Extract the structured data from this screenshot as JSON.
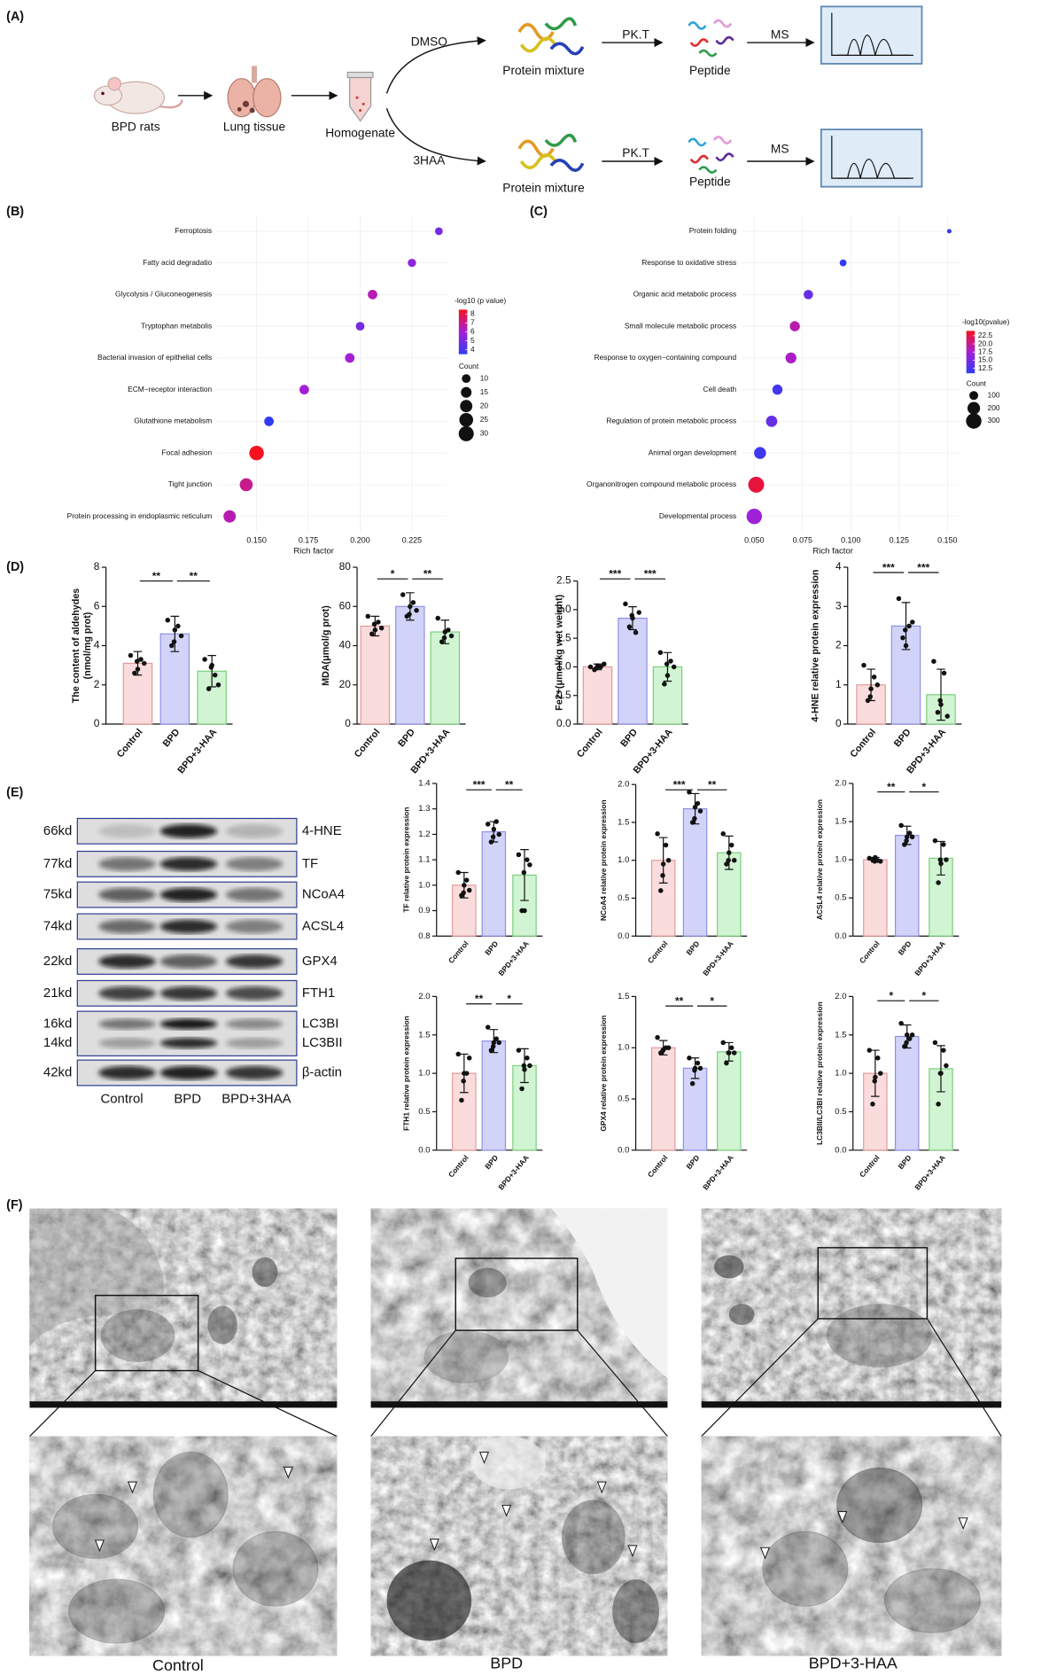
{
  "panel_labels": [
    "(A)",
    "(B)",
    "(C)",
    "(D)",
    "(E)",
    "(F)"
  ],
  "schematic": {
    "steps": [
      "BPD rats",
      "Lung tissue",
      "Homogenate"
    ],
    "branches": [
      {
        "treatment": "DMSO",
        "protein": "Protein mixture",
        "digest": "PK.T",
        "product": "Peptide",
        "analysis": "MS"
      },
      {
        "treatment": "3HAA",
        "protein": "Protein mixture",
        "digest": "PK.T",
        "product": "Peptide",
        "analysis": "MS"
      }
    ]
  },
  "chart_data": [
    {
      "type": "dot",
      "categories": [
        "Ferroptosis",
        "Fatty acid degradatio",
        "Glycolysis / Gluconeogenesis",
        "Tryptophan metabolis",
        "Bacterial invasion of epithelial cells",
        "ECM−receptor interaction",
        "Glutathione metabolism",
        "Focal adhesion",
        "Tight junction",
        "Protein processing in endoplasmic reticulum"
      ],
      "values": [
        0.238,
        0.225,
        0.206,
        0.2,
        0.195,
        0.173,
        0.156,
        0.15,
        0.145,
        0.137
      ],
      "pvalues": [
        5,
        5.5,
        6.5,
        5,
        6,
        6,
        3.5,
        8.5,
        7,
        6.5
      ],
      "counts": [
        8,
        9,
        12,
        10,
        12,
        12,
        12,
        28,
        22,
        20
      ],
      "xlabel": "Rich factor",
      "xlim": [
        0.131,
        0.242
      ],
      "xticks": [
        {
          "value": 0.15,
          "label": "0.150"
        },
        0.175,
        {
          "value": 0.2,
          "label": "0.200"
        },
        0.225
      ],
      "grid": true,
      "color_legend": {
        "title": "-log10 (p value)",
        "lim": [
          3.5,
          8.5
        ],
        "ticks": [
          8,
          7,
          6,
          5,
          4
        ],
        "colors": [
          "#2f3bf5",
          "#a61fd6",
          "#f5121f"
        ]
      },
      "size_legend": {
        "title": "Count",
        "ticks": [
          10,
          15,
          20,
          25,
          30
        ]
      }
    },
    {
      "type": "dot",
      "categories": [
        "Protein folding",
        "Response to oxidative stress",
        "Organic acid metabolic process",
        "Small molecule metabolic process",
        "Response to oxygen−containing compound",
        "Cell death",
        "Regulation of protein metabolic process",
        "Animal organ development",
        "Organonitrogen compound metabolic process",
        "Developmental process"
      ],
      "values": [
        0.151,
        0.096,
        0.078,
        0.071,
        0.069,
        0.062,
        0.059,
        0.053,
        0.051,
        0.05
      ],
      "pvalues": [
        11,
        11,
        14,
        19,
        18,
        12,
        14,
        12,
        23,
        17
      ],
      "counts": [
        25,
        60,
        110,
        130,
        150,
        130,
        160,
        180,
        320,
        300
      ],
      "xlabel": "Rich factor",
      "xlim": [
        0.0435,
        0.156
      ],
      "xticks": [
        {
          "value": 0.05,
          "label": "0.050"
        },
        0.075,
        {
          "value": 0.1,
          "label": "0.100"
        },
        0.125,
        {
          "value": 0.15,
          "label": "0.150"
        }
      ],
      "grid": true,
      "color_legend": {
        "title": "-log10(pvalue)",
        "lim": [
          11,
          24
        ],
        "ticks": [
          22.5,
          {
            "value": 20,
            "label": "20.0"
          },
          17.5,
          {
            "value": 15,
            "label": "15.0"
          },
          12.5
        ],
        "colors": [
          "#2f3bf5",
          "#a61fd6",
          "#f5121f"
        ]
      },
      "size_legend": {
        "title": "Count",
        "ticks": [
          100,
          200,
          300
        ]
      }
    },
    {
      "type": "bar",
      "ylabel": [
        "The content of aldehydes",
        "(nmol/mg prot)"
      ],
      "categories": [
        "Control",
        "BPD",
        "BPD+3-HAA"
      ],
      "values": [
        3.1,
        4.6,
        2.7
      ],
      "errors": [
        0.6,
        0.9,
        0.8
      ],
      "points": [
        [
          3.5,
          3.1,
          2.6,
          3.3,
          2.8,
          3.2
        ],
        [
          5.3,
          4.5,
          4.0,
          5.0,
          4.8,
          4.2
        ],
        [
          3.3,
          2.0,
          1.8,
          2.5,
          3.0,
          2.9
        ]
      ],
      "colors": [
        "#fbdcdc",
        "#d2d3f8",
        "#d1f4d2"
      ],
      "edgecolors": [
        "#e39a9a",
        "#8f90e6",
        "#7ccf7e"
      ],
      "ylim": [
        0,
        8
      ],
      "yticks": [
        0,
        2,
        4,
        6,
        8
      ],
      "significance": [
        "**",
        "**"
      ]
    },
    {
      "type": "bar",
      "ylabel": "MDA(μmol/g prot)",
      "categories": [
        "Control",
        "BPD",
        "BPD+3-HAA"
      ],
      "values": [
        50,
        60,
        47
      ],
      "errors": [
        5,
        7,
        6
      ],
      "points": [
        [
          55,
          49,
          46,
          52,
          48,
          51
        ],
        [
          66,
          58,
          55,
          62,
          60,
          56
        ],
        [
          54,
          45,
          42,
          48,
          47,
          44
        ]
      ],
      "colors": [
        "#fbdcdc",
        "#d2d3f8",
        "#d1f4d2"
      ],
      "edgecolors": [
        "#e39a9a",
        "#8f90e6",
        "#7ccf7e"
      ],
      "ylim": [
        0,
        80
      ],
      "yticks": [
        0,
        20,
        40,
        60,
        80
      ],
      "significance": [
        "*",
        "**"
      ]
    },
    {
      "type": "bar",
      "ylabel": "Fe2+(μmol/kg wet weight)",
      "categories": [
        "Control",
        "BPD",
        "BPD+3-HAA"
      ],
      "values": [
        1.0,
        1.85,
        1.0
      ],
      "errors": [
        0.05,
        0.2,
        0.25
      ],
      "points": [
        [
          1.0,
          1.05,
          0.95,
          1.0,
          1.02,
          0.98
        ],
        [
          2.1,
          1.95,
          1.7,
          1.6,
          1.85,
          1.9
        ],
        [
          1.25,
          1.0,
          0.7,
          1.1,
          0.85,
          1.05
        ]
      ],
      "colors": [
        "#fbdcdc",
        "#d2d3f8",
        "#d1f4d2"
      ],
      "edgecolors": [
        "#e39a9a",
        "#8f90e6",
        "#7ccf7e"
      ],
      "ylim": [
        0,
        2.5
      ],
      "yticks": [
        {
          "value": 0,
          "label": "0.0"
        },
        0.5,
        {
          "value": 1,
          "label": "1.0"
        },
        1.5,
        {
          "value": 2,
          "label": "2.0"
        },
        2.5
      ],
      "significance": [
        "***",
        "***"
      ]
    },
    {
      "type": "bar",
      "ylabel": "4-HNE relative protein expression",
      "categories": [
        "Control",
        "BPD",
        "BPD+3-HAA"
      ],
      "values": [
        1.0,
        2.5,
        0.75
      ],
      "errors": [
        0.4,
        0.6,
        0.65
      ],
      "points": [
        [
          1.5,
          1.0,
          0.6,
          1.2,
          0.9,
          0.7
        ],
        [
          3.2,
          2.6,
          2.2,
          2.5,
          2.0,
          2.4
        ],
        [
          1.6,
          0.2,
          0.3,
          1.3,
          0.5,
          0.6
        ]
      ],
      "colors": [
        "#fbdcdc",
        "#d2d3f8",
        "#d1f4d2"
      ],
      "edgecolors": [
        "#e39a9a",
        "#8f90e6",
        "#7ccf7e"
      ],
      "ylim": [
        0,
        4
      ],
      "yticks": [
        0,
        1,
        2,
        3,
        4
      ],
      "significance": [
        "***",
        "***"
      ]
    },
    {
      "type": "bar",
      "ylabel": "TF relative protein expression",
      "categories": [
        "Control",
        "BPD",
        "BPD+3-HAA"
      ],
      "values": [
        1.0,
        1.21,
        1.04
      ],
      "errors": [
        0.05,
        0.04,
        0.1
      ],
      "points": [
        [
          1.05,
          0.98,
          0.96,
          1.02,
          1.0,
          0.97
        ],
        [
          1.24,
          1.2,
          1.17,
          1.25,
          1.22,
          1.19
        ],
        [
          1.12,
          1.08,
          0.9,
          1.1,
          0.9,
          1.05
        ]
      ],
      "colors": [
        "#fbdcdc",
        "#d2d3f8",
        "#d1f4d2"
      ],
      "edgecolors": [
        "#e39a9a",
        "#8f90e6",
        "#7ccf7e"
      ],
      "ylim": [
        0.8,
        1.4
      ],
      "yticks": [
        0.8,
        0.9,
        {
          "value": 1,
          "label": "1.0"
        },
        1.1,
        1.2,
        1.3,
        1.4
      ],
      "significance": [
        "***",
        "**"
      ]
    },
    {
      "type": "bar",
      "ylabel": "NCoA4 relative protein expression",
      "categories": [
        "Control",
        "BPD",
        "BPD+3-HAA"
      ],
      "values": [
        1.0,
        1.68,
        1.1
      ],
      "errors": [
        0.3,
        0.2,
        0.22
      ],
      "points": [
        [
          1.35,
          1.0,
          0.6,
          1.2,
          0.95,
          0.8
        ],
        [
          1.9,
          1.65,
          1.5,
          1.75,
          1.7,
          1.55
        ],
        [
          1.35,
          1.0,
          0.95,
          1.2,
          1.1,
          1.0
        ]
      ],
      "colors": [
        "#fbdcdc",
        "#d2d3f8",
        "#d1f4d2"
      ],
      "edgecolors": [
        "#e39a9a",
        "#8f90e6",
        "#7ccf7e"
      ],
      "ylim": [
        0,
        2
      ],
      "yticks": [
        {
          "value": 0,
          "label": "0.0"
        },
        0.5,
        {
          "value": 1,
          "label": "1.0"
        },
        1.5,
        {
          "value": 2,
          "label": "2.0"
        }
      ],
      "significance": [
        "***",
        "**"
      ]
    },
    {
      "type": "bar",
      "ylabel": "ACSL4 relative protein expression",
      "categories": [
        "Control",
        "BPD",
        "BPD+3-HAA"
      ],
      "values": [
        1.0,
        1.32,
        1.02
      ],
      "errors": [
        0.03,
        0.12,
        0.22
      ],
      "points": [
        [
          1.02,
          0.98,
          1.0,
          0.99,
          1.03,
          0.98
        ],
        [
          1.45,
          1.3,
          1.2,
          1.35,
          1.3,
          1.25
        ],
        [
          1.25,
          1.0,
          0.7,
          1.2,
          0.95,
          1.0
        ]
      ],
      "colors": [
        "#fbdcdc",
        "#d2d3f8",
        "#d1f4d2"
      ],
      "edgecolors": [
        "#e39a9a",
        "#8f90e6",
        "#7ccf7e"
      ],
      "ylim": [
        0,
        2
      ],
      "yticks": [
        {
          "value": 0,
          "label": "0.0"
        },
        0.5,
        {
          "value": 1,
          "label": "1.0"
        },
        1.5,
        {
          "value": 2,
          "label": "2.0"
        }
      ],
      "significance": [
        "**",
        "*"
      ]
    },
    {
      "type": "bar",
      "ylabel": "FTH1 relative protein expression",
      "categories": [
        "Control",
        "BPD",
        "BPD+3-HAA"
      ],
      "values": [
        1.0,
        1.42,
        1.1
      ],
      "errors": [
        0.25,
        0.15,
        0.22
      ],
      "points": [
        [
          1.25,
          1.2,
          0.65,
          1.0,
          1.0,
          0.9
        ],
        [
          1.6,
          1.4,
          1.3,
          1.45,
          1.4,
          1.35
        ],
        [
          1.3,
          1.1,
          0.8,
          1.2,
          1.05,
          1.1
        ]
      ],
      "colors": [
        "#fbdcdc",
        "#d2d3f8",
        "#d1f4d2"
      ],
      "edgecolors": [
        "#e39a9a",
        "#8f90e6",
        "#7ccf7e"
      ],
      "ylim": [
        0,
        2
      ],
      "yticks": [
        {
          "value": 0,
          "label": "0.0"
        },
        0.5,
        {
          "value": 1,
          "label": "1.0"
        },
        1.5,
        {
          "value": 2,
          "label": "2.0"
        }
      ],
      "significance": [
        "**",
        "*"
      ]
    },
    {
      "type": "bar",
      "ylabel": "GPX4 relative protein expression",
      "categories": [
        "Control",
        "BPD",
        "BPD+3-HAA"
      ],
      "values": [
        1.0,
        0.8,
        0.96
      ],
      "errors": [
        0.07,
        0.1,
        0.09
      ],
      "points": [
        [
          1.1,
          1.0,
          0.95,
          1.0,
          0.98,
          0.97
        ],
        [
          0.9,
          0.8,
          0.65,
          0.85,
          0.8,
          0.78
        ],
        [
          1.05,
          0.95,
          0.85,
          1.0,
          0.95,
          0.95
        ]
      ],
      "colors": [
        "#fbdcdc",
        "#d2d3f8",
        "#d1f4d2"
      ],
      "edgecolors": [
        "#e39a9a",
        "#8f90e6",
        "#7ccf7e"
      ],
      "ylim": [
        0,
        1.5
      ],
      "yticks": [
        {
          "value": 0,
          "label": "0.0"
        },
        0.5,
        {
          "value": 1,
          "label": "1.0"
        },
        1.5
      ],
      "significance": [
        "**",
        "*"
      ]
    },
    {
      "type": "bar",
      "ylabel": "LC3BII/LC3BI relative protein expression",
      "categories": [
        "Control",
        "BPD",
        "BPD+3-HAA"
      ],
      "values": [
        1.0,
        1.48,
        1.06
      ],
      "errors": [
        0.3,
        0.15,
        0.3
      ],
      "points": [
        [
          1.3,
          1.0,
          0.6,
          1.2,
          0.95,
          0.9
        ],
        [
          1.65,
          1.5,
          1.35,
          1.45,
          1.5,
          1.4
        ],
        [
          1.4,
          1.1,
          0.6,
          1.3,
          1.0,
          1.0
        ]
      ],
      "colors": [
        "#fbdcdc",
        "#d2d3f8",
        "#d1f4d2"
      ],
      "edgecolors": [
        "#e39a9a",
        "#8f90e6",
        "#7ccf7e"
      ],
      "ylim": [
        0,
        2
      ],
      "yticks": [
        {
          "value": 0,
          "label": "0.0"
        },
        0.5,
        {
          "value": 1,
          "label": "1.0"
        },
        1.5,
        {
          "value": 2,
          "label": "2.0"
        }
      ],
      "significance": [
        "*",
        "*"
      ]
    }
  ],
  "blot": {
    "markers": [
      "66kd",
      "77kd",
      "75kd",
      "74kd",
      "22kd",
      "21kd",
      "16kd",
      "14kd",
      "42kd"
    ],
    "proteins": [
      "4-HNE",
      "TF",
      "NCoA4",
      "ACSL4",
      "GPX4",
      "FTH1",
      "LC3BI",
      "LC3BII",
      "β-actin"
    ],
    "lanes": [
      "Control",
      "BPD",
      "BPD+3HAA"
    ]
  },
  "tem": {
    "groups": [
      "Control",
      "BPD",
      "BPD+3-HAA"
    ]
  }
}
